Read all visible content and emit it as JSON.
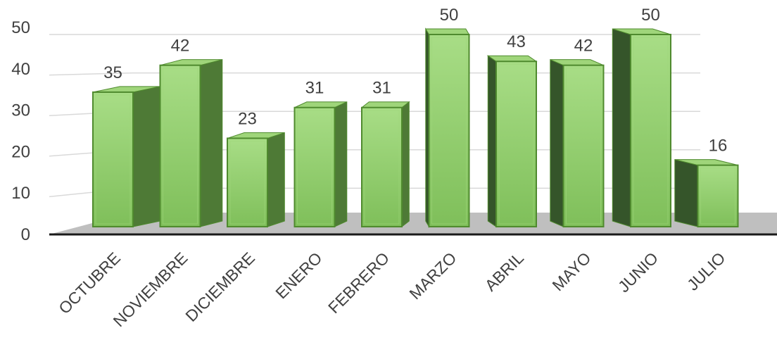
{
  "chart_data": {
    "type": "bar",
    "title": "",
    "xlabel": "",
    "ylabel": "",
    "categories": [
      "OCTUBRE",
      "NOVIEMBRE",
      "DICIEMBRE",
      "ENERO",
      "FEBRERO",
      "MARZO",
      "ABRIL",
      "MAYO",
      "JUNIO",
      "JULIO"
    ],
    "values": [
      35,
      42,
      23,
      31,
      31,
      50,
      43,
      42,
      50,
      16
    ],
    "ylim": [
      0,
      50
    ],
    "yticks": [
      "0",
      "10",
      "20",
      "30",
      "40",
      "50"
    ],
    "data_labels": [
      "35",
      "42",
      "23",
      "31",
      "31",
      "50",
      "43",
      "42",
      "50",
      "16"
    ],
    "grid": true,
    "legend": "none",
    "style": "3d-column"
  },
  "colors": {
    "bar_front": "#7fbf5a",
    "bar_front_highlight": "#a8dd86",
    "bar_side": "#4e7a36",
    "bar_side_dark": "#35552a",
    "bar_top": "#9fd57a",
    "bar_edge": "#4f8a2e",
    "floor": "#bfbfbf",
    "grid": "#d9d9d9",
    "axis": "#1a1a1a",
    "text": "#404040"
  }
}
